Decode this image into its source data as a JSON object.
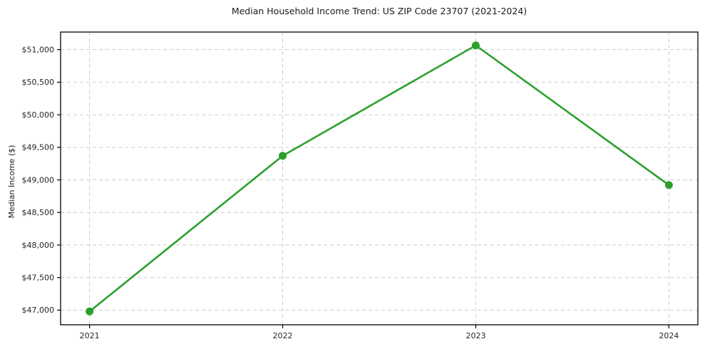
{
  "chart_data": {
    "type": "line",
    "title": "Median Household Income Trend: US ZIP Code 23707 (2021-2024)",
    "xlabel": "",
    "ylabel": "Median Income ($)",
    "x": [
      2021,
      2022,
      2023,
      2024
    ],
    "series": [
      {
        "name": "Median Household Income",
        "values": [
          46980,
          49370,
          51065,
          48920
        ]
      }
    ],
    "xticks": [
      2021,
      2022,
      2023,
      2024
    ],
    "xtick_labels": [
      "2021",
      "2022",
      "2023",
      "2024"
    ],
    "yticks": [
      47000,
      47500,
      48000,
      48500,
      49000,
      49500,
      50000,
      50500,
      51000
    ],
    "ytick_labels": [
      "$47,000",
      "$47,500",
      "$48,000",
      "$48,500",
      "$49,000",
      "$49,500",
      "$50,000",
      "$50,500",
      "$51,000"
    ],
    "xlim": [
      2020.85,
      2024.15
    ],
    "ylim": [
      46775,
      51270
    ],
    "grid": true,
    "legend": "none",
    "colors": {
      "line": "#2ca02c",
      "marker": "#2ca02c",
      "grid": "#cccccc",
      "axis": "#000000",
      "tick_text": "#262626",
      "background": "#ffffff"
    }
  }
}
